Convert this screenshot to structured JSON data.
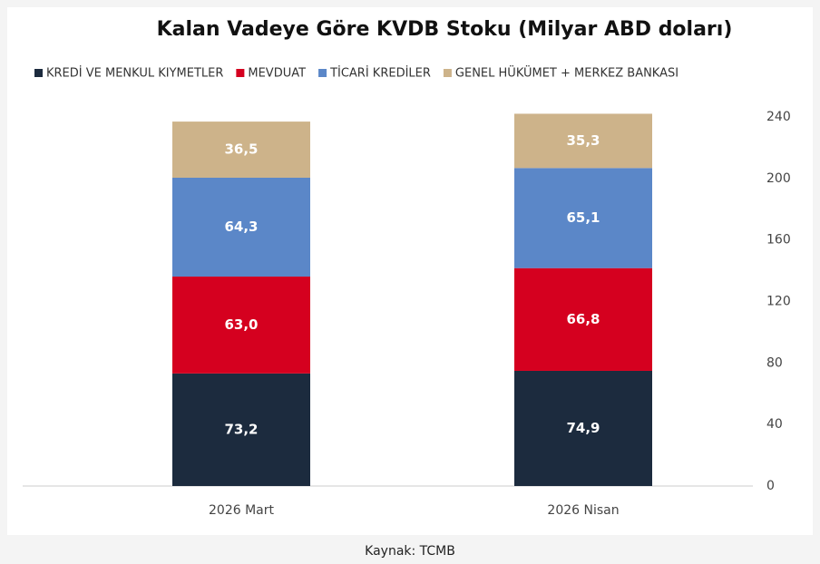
{
  "chart_data": {
    "type": "stacked_bar",
    "title": "Kalan Vadeye Göre KVDB Stoku (Milyar ABD doları)",
    "source": "Kaynak: TCMB",
    "categories": [
      "2026 Mart",
      "2026 Nisan"
    ],
    "series": [
      {
        "name": "KREDİ VE MENKUL KIYMETLER",
        "color": "#1c2b3e",
        "values": [
          73.2,
          74.9
        ],
        "value_labels": [
          "73,2",
          "74,9"
        ]
      },
      {
        "name": "MEVDUAT",
        "color": "#d5001f",
        "values": [
          63.0,
          66.8
        ],
        "value_labels": [
          "63,0",
          "66,8"
        ]
      },
      {
        "name": "TİCARİ KREDİLER",
        "color": "#5b87c8",
        "values": [
          64.3,
          65.1
        ],
        "value_labels": [
          "64,3",
          "65,1"
        ]
      },
      {
        "name": "GENEL HÜKÜMET + MERKEZ BANKASI",
        "color": "#cdb38a",
        "values": [
          36.5,
          35.3
        ],
        "value_labels": [
          "36,5",
          "35,3"
        ]
      }
    ],
    "ylim": [
      0,
      240
    ],
    "yticks": [
      0,
      40,
      80,
      120,
      160,
      200,
      240
    ],
    "y_axis_side": "right",
    "legend": "top"
  }
}
